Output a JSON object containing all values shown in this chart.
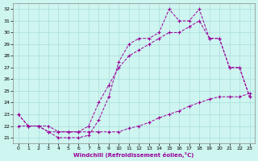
{
  "xlabel": "Windchill (Refroidissement éolien,°C)",
  "bg_color": "#cef5f0",
  "line_color": "#990099",
  "grid_color": "#aadddd",
  "xlim": [
    -0.5,
    23.5
  ],
  "ylim": [
    20.5,
    32.5
  ],
  "xticks": [
    0,
    1,
    2,
    3,
    4,
    5,
    6,
    7,
    8,
    9,
    10,
    11,
    12,
    13,
    14,
    15,
    16,
    17,
    18,
    19,
    20,
    21,
    22,
    23
  ],
  "yticks": [
    21,
    22,
    23,
    24,
    25,
    26,
    27,
    28,
    29,
    30,
    31,
    32
  ],
  "curve1_x": [
    0,
    1,
    2,
    3,
    4,
    5,
    6,
    7,
    8,
    9,
    10,
    11,
    12,
    13,
    14,
    15,
    16,
    17,
    18,
    19,
    20,
    21,
    22,
    23
  ],
  "curve1_y": [
    23,
    22,
    22,
    21.5,
    21,
    21,
    21,
    21.2,
    22.5,
    24.5,
    27.5,
    29,
    29.5,
    29.5,
    30,
    32,
    31,
    31,
    32,
    29.5,
    29.5,
    27,
    27,
    24.5
  ],
  "curve2_x": [
    0,
    1,
    2,
    3,
    4,
    5,
    6,
    7,
    8,
    9,
    10,
    11,
    12,
    13,
    14,
    15,
    16,
    17,
    18,
    19,
    20,
    21,
    22,
    23
  ],
  "curve2_y": [
    23,
    22,
    22,
    21.5,
    21.5,
    21.5,
    21.5,
    22,
    24,
    25.5,
    27,
    28,
    28.5,
    29,
    29.5,
    30,
    30,
    30.5,
    31,
    29.5,
    29.5,
    27,
    27,
    24.5
  ],
  "curve3_x": [
    0,
    1,
    2,
    3,
    4,
    5,
    6,
    7,
    8,
    9,
    10,
    11,
    12,
    13,
    14,
    15,
    16,
    17,
    18,
    19,
    20,
    21,
    22,
    23
  ],
  "curve3_y": [
    22,
    22,
    22,
    22,
    21.5,
    21.5,
    21.5,
    21.5,
    21.5,
    21.5,
    21.5,
    21.8,
    22,
    22.3,
    22.7,
    23,
    23.3,
    23.7,
    24,
    24.3,
    24.5,
    24.5,
    24.5,
    24.8
  ]
}
